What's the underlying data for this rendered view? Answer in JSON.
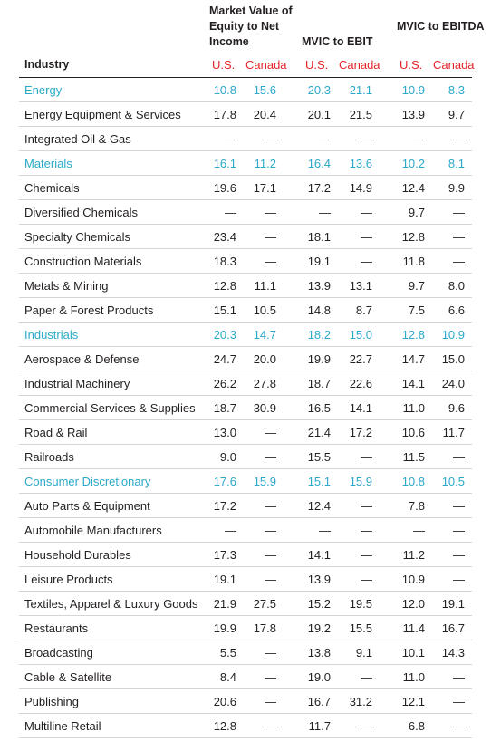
{
  "headers": {
    "col1": "Market Value of Equity to Net Income",
    "col2": "MVIC to EBIT",
    "col3": "MVIC to EBITDA",
    "industry": "Industry",
    "us": "U.S.",
    "canada": "Canada"
  },
  "colors": {
    "sector": "#2aa9c9",
    "subheader": "#e3262b"
  },
  "rows": [
    {
      "name": "Energy",
      "sector": true,
      "values": [
        "10.8",
        "15.6",
        "20.3",
        "21.1",
        "10.9",
        "8.3"
      ]
    },
    {
      "name": "Energy Equipment & Services",
      "sector": false,
      "values": [
        "17.8",
        "20.4",
        "20.1",
        "21.5",
        "13.9",
        "9.7"
      ]
    },
    {
      "name": "Integrated Oil & Gas",
      "sector": false,
      "values": [
        "—",
        "—",
        "—",
        "—",
        "—",
        "—"
      ]
    },
    {
      "name": "Materials",
      "sector": true,
      "values": [
        "16.1",
        "11.2",
        "16.4",
        "13.6",
        "10.2",
        "8.1"
      ]
    },
    {
      "name": "Chemicals",
      "sector": false,
      "values": [
        "19.6",
        "17.1",
        "17.2",
        "14.9",
        "12.4",
        "9.9"
      ]
    },
    {
      "name": "Diversified Chemicals",
      "sector": false,
      "values": [
        "—",
        "—",
        "—",
        "—",
        "9.7",
        "—"
      ]
    },
    {
      "name": "Specialty Chemicals",
      "sector": false,
      "values": [
        "23.4",
        "—",
        "18.1",
        "—",
        "12.8",
        "—"
      ]
    },
    {
      "name": "Construction Materials",
      "sector": false,
      "values": [
        "18.3",
        "—",
        "19.1",
        "—",
        "11.8",
        "—"
      ]
    },
    {
      "name": "Metals & Mining",
      "sector": false,
      "values": [
        "12.8",
        "11.1",
        "13.9",
        "13.1",
        "9.7",
        "8.0"
      ]
    },
    {
      "name": "Paper & Forest Products",
      "sector": false,
      "values": [
        "15.1",
        "10.5",
        "14.8",
        "8.7",
        "7.5",
        "6.6"
      ]
    },
    {
      "name": "Industrials",
      "sector": true,
      "values": [
        "20.3",
        "14.7",
        "18.2",
        "15.0",
        "12.8",
        "10.9"
      ]
    },
    {
      "name": "Aerospace & Defense",
      "sector": false,
      "values": [
        "24.7",
        "20.0",
        "19.9",
        "22.7",
        "14.7",
        "15.0"
      ]
    },
    {
      "name": "Industrial Machinery",
      "sector": false,
      "values": [
        "26.2",
        "27.8",
        "18.7",
        "22.6",
        "14.1",
        "24.0"
      ]
    },
    {
      "name": "Commercial Services & Supplies",
      "sector": false,
      "values": [
        "18.7",
        "30.9",
        "16.5",
        "14.1",
        "11.0",
        "9.6"
      ]
    },
    {
      "name": "Road & Rail",
      "sector": false,
      "values": [
        "13.0",
        "—",
        "21.4",
        "17.2",
        "10.6",
        "11.7"
      ]
    },
    {
      "name": "Railroads",
      "sector": false,
      "values": [
        "9.0",
        "—",
        "15.5",
        "—",
        "11.5",
        "—"
      ]
    },
    {
      "name": "Consumer Discretionary",
      "sector": true,
      "values": [
        "17.6",
        "15.9",
        "15.1",
        "15.9",
        "10.8",
        "10.5"
      ]
    },
    {
      "name": "Auto Parts & Equipment",
      "sector": false,
      "values": [
        "17.2",
        "—",
        "12.4",
        "—",
        "7.8",
        "—"
      ]
    },
    {
      "name": "Automobile Manufacturers",
      "sector": false,
      "values": [
        "—",
        "—",
        "—",
        "—",
        "—",
        "—"
      ]
    },
    {
      "name": "Household Durables",
      "sector": false,
      "values": [
        "17.3",
        "—",
        "14.1",
        "—",
        "11.2",
        "—"
      ]
    },
    {
      "name": "Leisure Products",
      "sector": false,
      "values": [
        "19.1",
        "—",
        "13.9",
        "—",
        "10.9",
        "—"
      ]
    },
    {
      "name": "Textiles, Apparel & Luxury Goods",
      "sector": false,
      "values": [
        "21.9",
        "27.5",
        "15.2",
        "19.5",
        "12.0",
        "19.1"
      ]
    },
    {
      "name": "Restaurants",
      "sector": false,
      "values": [
        "19.9",
        "17.8",
        "19.2",
        "15.5",
        "11.4",
        "16.7"
      ]
    },
    {
      "name": "Broadcasting",
      "sector": false,
      "values": [
        "5.5",
        "—",
        "13.8",
        "9.1",
        "10.1",
        "14.3"
      ]
    },
    {
      "name": "Cable & Satellite",
      "sector": false,
      "values": [
        "8.4",
        "—",
        "19.0",
        "—",
        "11.0",
        "—"
      ]
    },
    {
      "name": "Publishing",
      "sector": false,
      "values": [
        "20.6",
        "—",
        "16.7",
        "31.2",
        "12.1",
        "—"
      ]
    },
    {
      "name": "Multiline Retail",
      "sector": false,
      "values": [
        "12.8",
        "—",
        "11.7",
        "—",
        "6.8",
        "—"
      ]
    }
  ]
}
